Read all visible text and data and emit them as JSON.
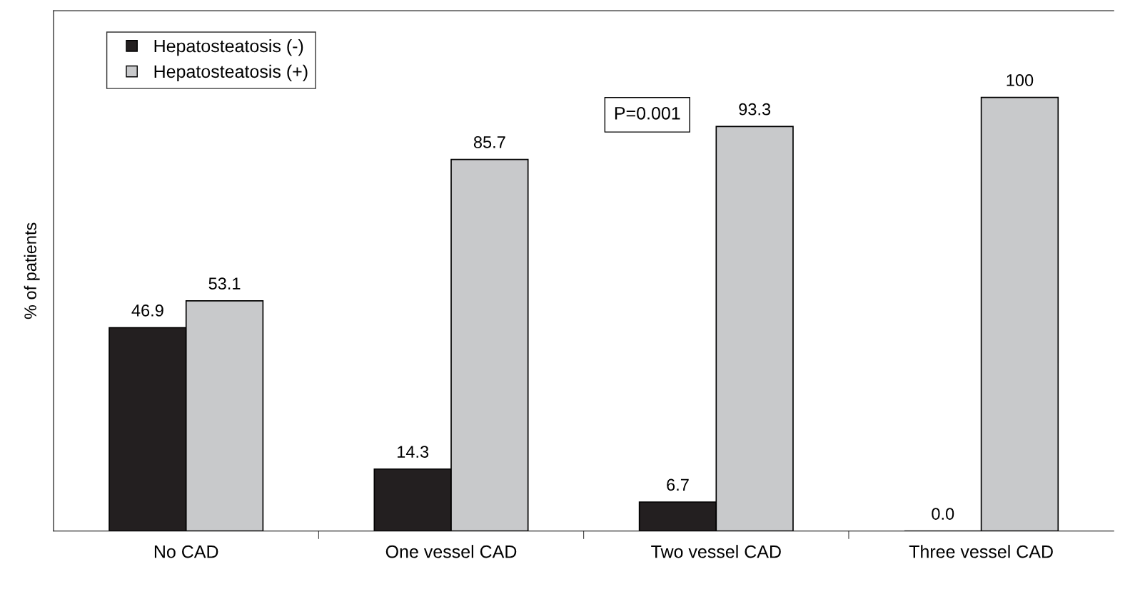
{
  "chart_data": {
    "type": "bar",
    "ylabel": "% of patients",
    "categories": [
      "No CAD",
      "One vessel CAD",
      "Two vessel CAD",
      "Three vessel CAD"
    ],
    "series": [
      {
        "name": "Hepatosteatosis (-)",
        "color": "#231f20",
        "values": [
          46.9,
          14.3,
          6.7,
          0.0
        ],
        "value_labels": [
          "46.9",
          "14.3",
          "6.7",
          "0.0"
        ]
      },
      {
        "name": "Hepatosteatosis (+)",
        "color": "#c8c9cb",
        "values": [
          53.1,
          85.7,
          93.3,
          100
        ],
        "value_labels": [
          "53.1",
          "85.7",
          "93.3",
          "100"
        ]
      }
    ],
    "annotations": [
      "P=0.001"
    ],
    "legend": "top left",
    "grid": false
  }
}
